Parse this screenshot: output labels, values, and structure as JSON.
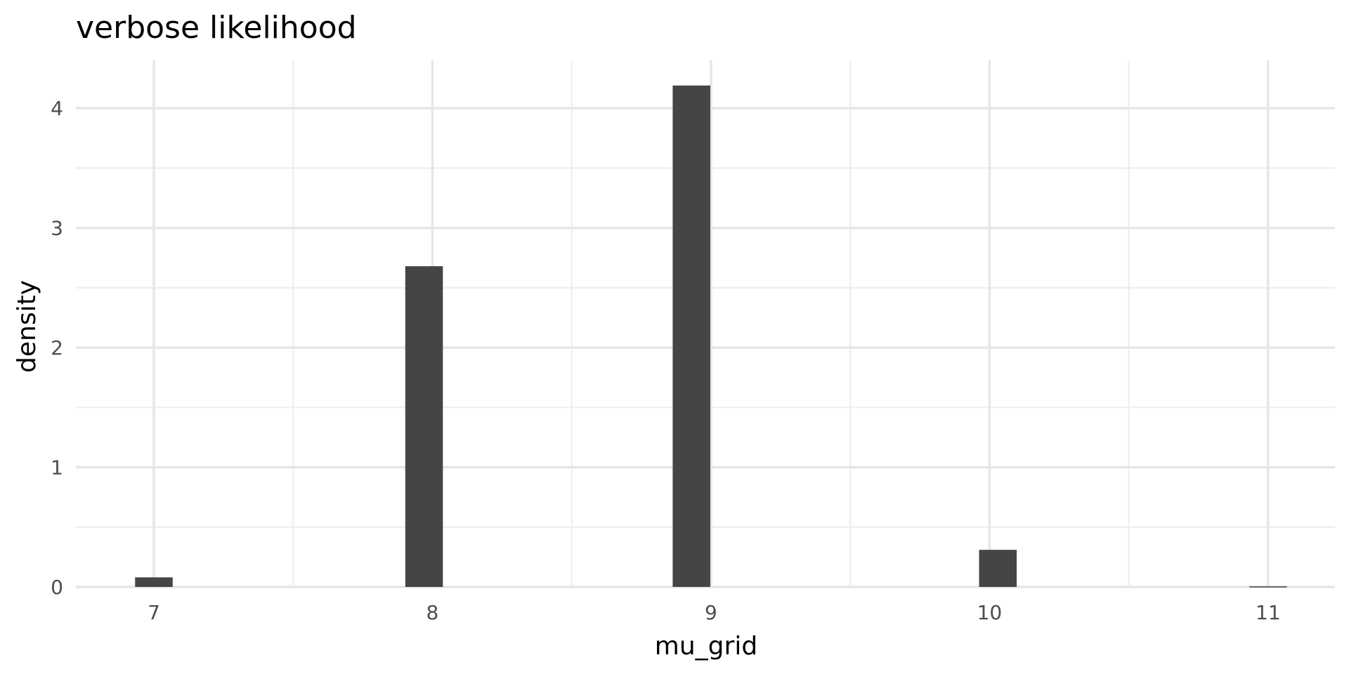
{
  "chart_data": {
    "type": "bar",
    "title": "verbose likelihood",
    "xlabel": "mu_grid",
    "ylabel": "density",
    "xlim": [
      6.72,
      11.24
    ],
    "ylim": [
      0,
      4.4
    ],
    "x_ticks": [
      7,
      8,
      9,
      10,
      11
    ],
    "y_ticks": [
      0,
      1,
      2,
      3,
      4
    ],
    "grid": true,
    "bar_width": 0.135,
    "bar_color": "#454545",
    "bars": [
      {
        "x": 7.0,
        "value": 0.08
      },
      {
        "x": 7.97,
        "value": 2.68
      },
      {
        "x": 8.93,
        "value": 4.19
      },
      {
        "x": 10.03,
        "value": 0.31
      },
      {
        "x": 11.0,
        "value": 0.005
      }
    ]
  }
}
